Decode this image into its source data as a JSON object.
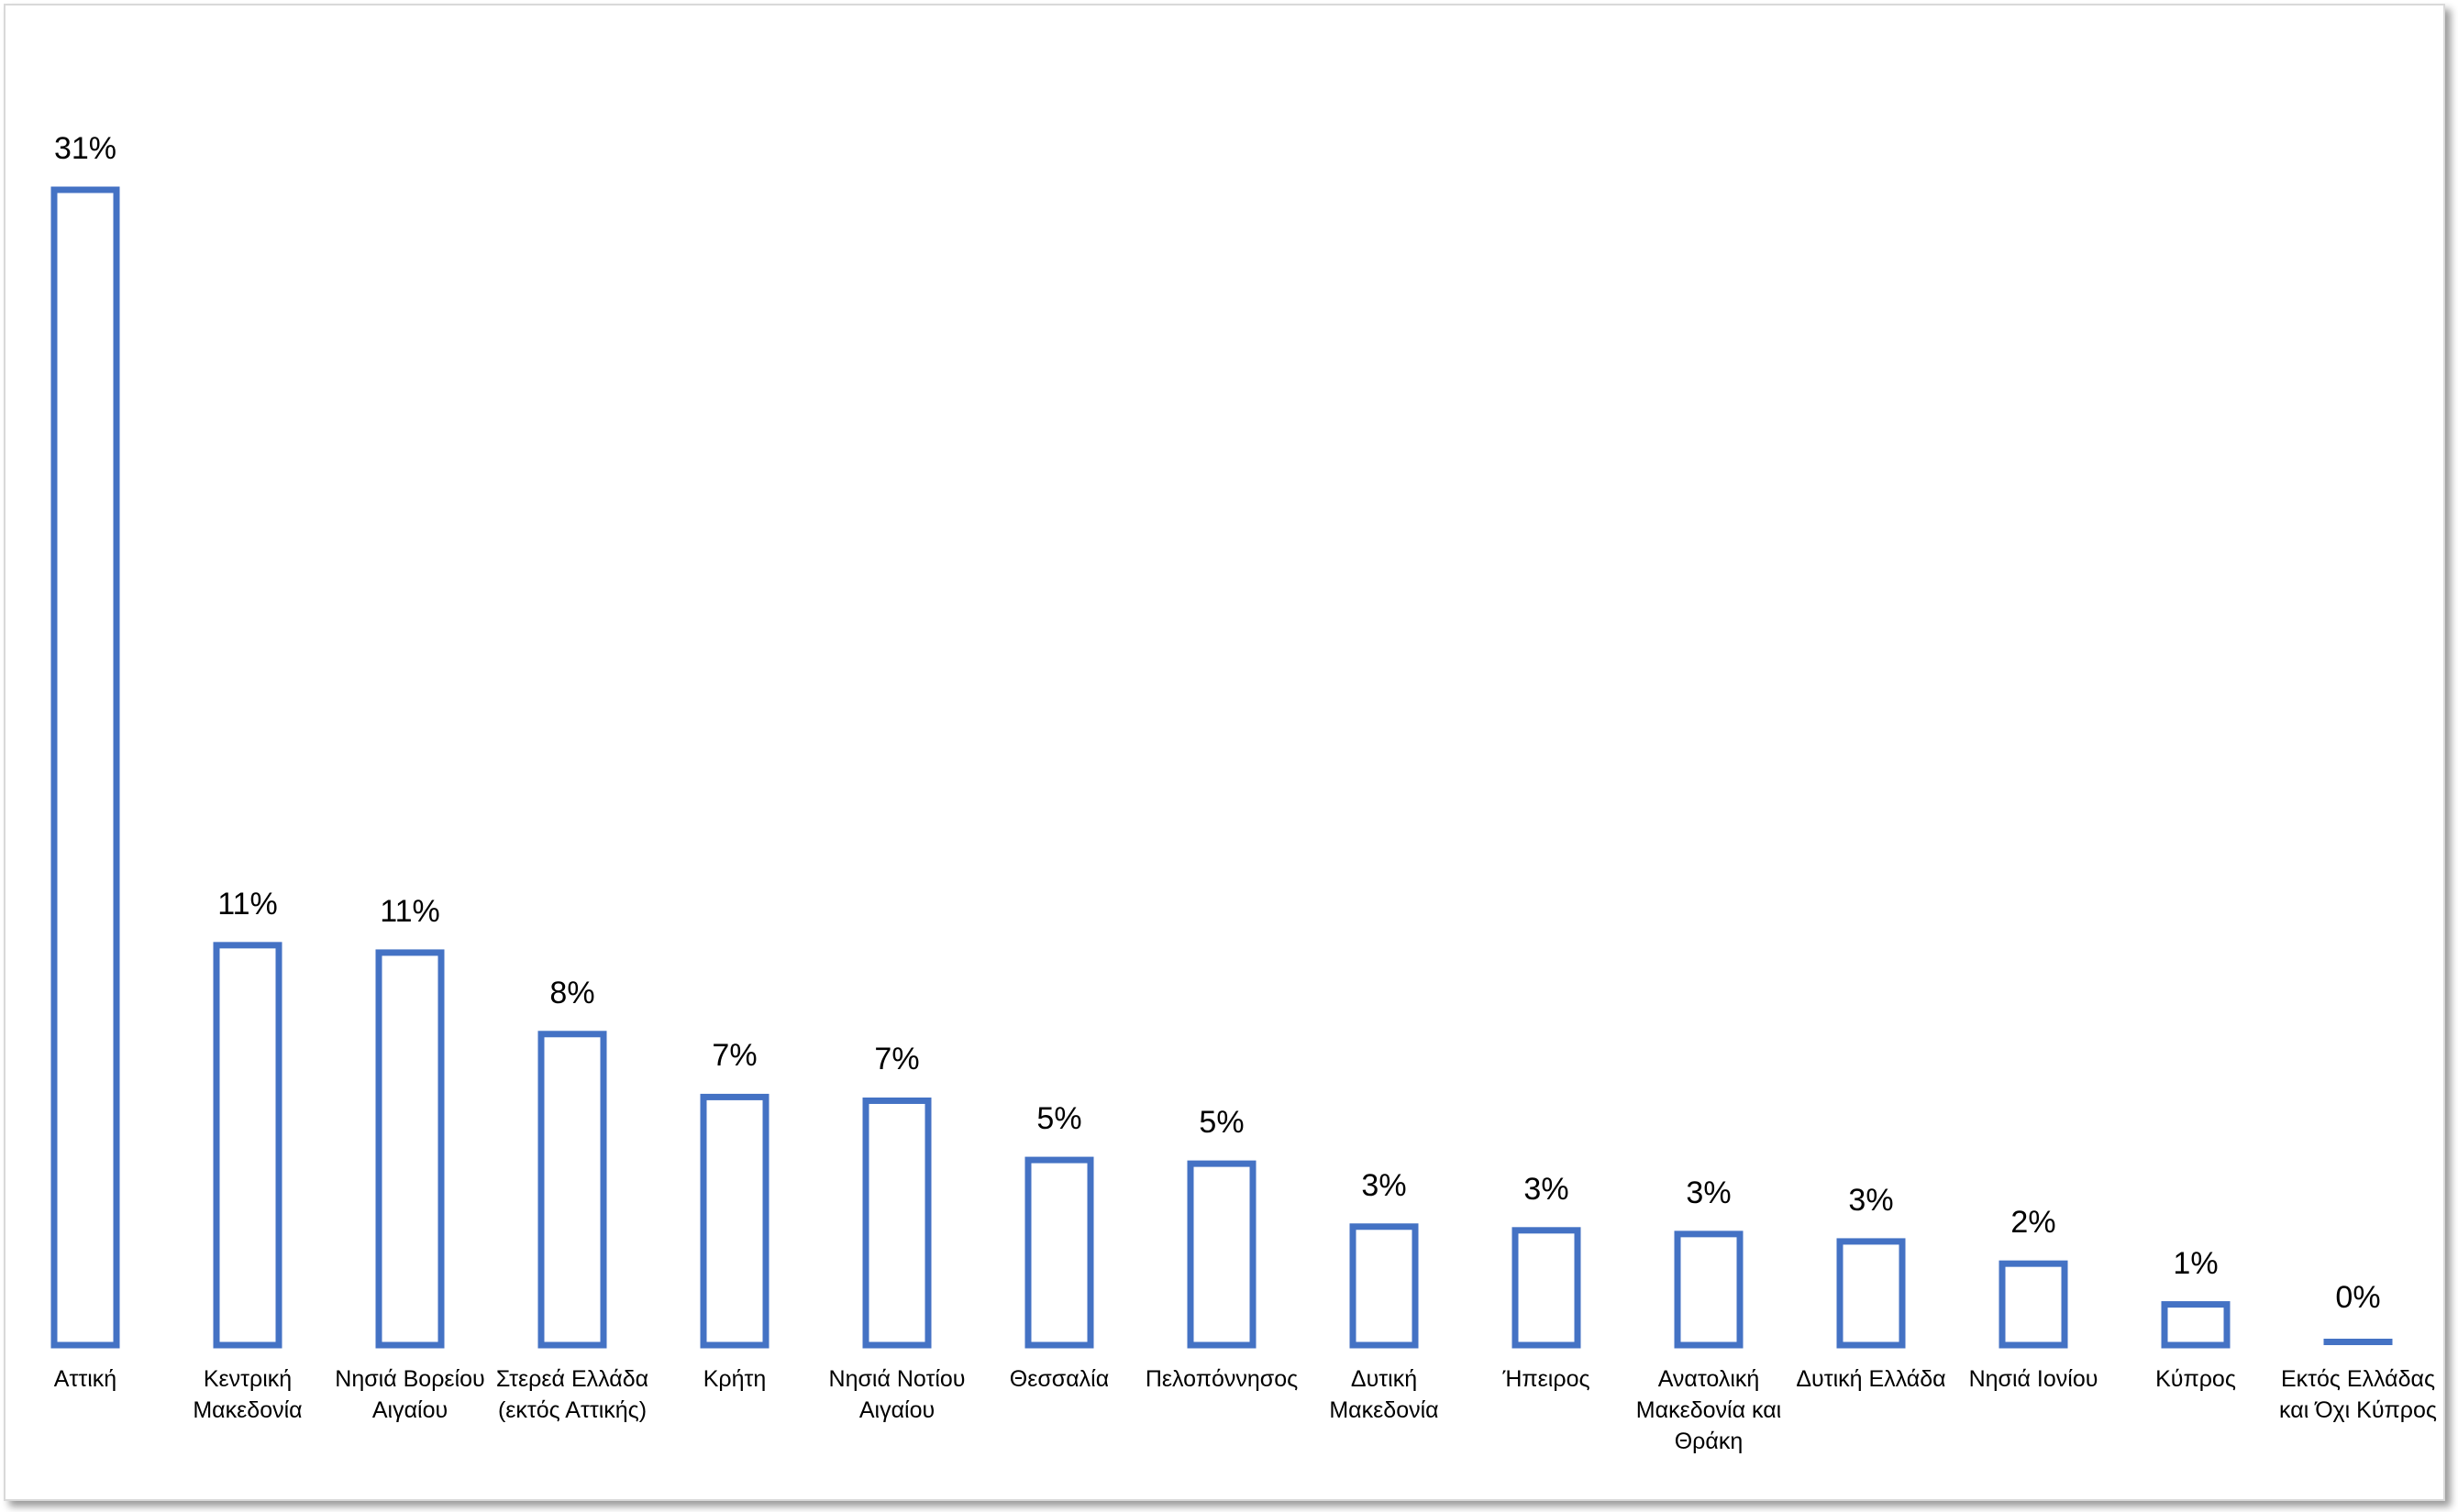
{
  "chart_data": {
    "type": "bar",
    "categories": [
      "Αττική",
      "Κεντρική Μακεδονία",
      "Νησιά Βορείου Αιγαίου",
      "Στερεά Ελλάδα (εκτός Αττικής)",
      "Κρήτη",
      "Νησιά Νοτίου Αιγαίου",
      "Θεσσαλία",
      "Πελοπόννησος",
      "Δυτική Μακεδονία",
      "Ήπειρος",
      "Ανατολική Μακεδονία και Θράκη",
      "Δυτική Ελλάδα",
      "Νησιά Ιονίου",
      "Κύπρος",
      "Εκτός Ελλάδας και Όχι Κύπρος"
    ],
    "values": [
      31.2,
      10.8,
      10.6,
      8.4,
      6.7,
      6.6,
      5.0,
      4.9,
      3.2,
      3.1,
      3.0,
      2.8,
      2.2,
      1.1,
      0.1
    ],
    "value_labels": [
      "31%",
      "11%",
      "11%",
      "8%",
      "7%",
      "7%",
      "5%",
      "5%",
      "3%",
      "3%",
      "3%",
      "3%",
      "2%",
      "1%",
      "0%"
    ],
    "color": "#4472c4"
  }
}
